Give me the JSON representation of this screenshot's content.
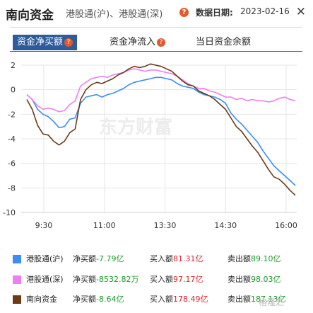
{
  "header": {
    "title": "南向资金",
    "subtitle": "港股通(沪)、港股通(深)",
    "help_glyph": "?",
    "date_label": "数据日期:",
    "date_value": "2023-02-16",
    "close_glyph": "✕"
  },
  "tabs": [
    {
      "label": "资金净买额",
      "active": true,
      "help": "?"
    },
    {
      "label": "资金净流入",
      "active": false,
      "help": "?"
    },
    {
      "label": "当日资金余额",
      "active": false,
      "help": ""
    }
  ],
  "watermark": "东方财富",
  "corner_watermark": "格隆汇",
  "colors": {
    "hgt_sh": "#3b8df2",
    "hgt_sz": "#f07ef2",
    "total": "#6b3b16",
    "accent": "#2f5b9b"
  },
  "chart_data": {
    "type": "line",
    "ylim": [
      -10,
      2
    ],
    "yticks": [
      "2",
      "0",
      "-2",
      "-4",
      "-6",
      "-8",
      "-10"
    ],
    "xticks": [
      "9:30",
      "11:00",
      "13:30",
      "14:30",
      "16:00"
    ],
    "grid": true,
    "series": [
      {
        "name": "港股通(沪)",
        "color": "#3b8df2",
        "values": [
          -0.4,
          -0.8,
          -1.6,
          -2.0,
          -2.2,
          -2.6,
          -3.1,
          -3.0,
          -2.4,
          -2.3,
          -1.1,
          -0.6,
          -0.5,
          -0.4,
          -0.6,
          -0.4,
          -0.3,
          -0.1,
          0.1,
          0.4,
          0.6,
          0.7,
          0.8,
          0.9,
          1.0,
          1.0,
          0.9,
          0.8,
          0.5,
          0.3,
          0.2,
          0.1,
          -0.2,
          -0.4,
          -0.5,
          -0.6,
          -0.8,
          -1.1,
          -1.9,
          -2.4,
          -2.8,
          -3.3,
          -3.8,
          -4.3,
          -5.0,
          -5.6,
          -6.2,
          -6.6,
          -7.0,
          -7.4,
          -7.8
        ]
      },
      {
        "name": "港股通(深)",
        "color": "#f07ef2",
        "values": [
          -0.4,
          -0.8,
          -1.3,
          -1.6,
          -1.5,
          -1.6,
          -1.8,
          -1.7,
          -1.2,
          -0.9,
          0.3,
          0.6,
          0.9,
          1.0,
          1.1,
          1.0,
          1.2,
          1.3,
          1.4,
          1.6,
          1.7,
          1.6,
          1.5,
          1.6,
          1.6,
          1.5,
          1.4,
          1.3,
          1.1,
          0.8,
          0.5,
          0.3,
          0.1,
          0.1,
          -0.1,
          -0.2,
          -0.4,
          -0.6,
          -0.6,
          -0.8,
          -0.7,
          -0.9,
          -0.8,
          -0.9,
          -0.9,
          -1.0,
          -0.9,
          -0.7,
          -0.6,
          -0.8,
          -0.9
        ]
      },
      {
        "name": "南向资金",
        "color": "#6b3b16",
        "values": [
          -0.8,
          -1.6,
          -2.9,
          -3.6,
          -3.7,
          -4.2,
          -4.5,
          -4.2,
          -3.5,
          -3.2,
          -0.8,
          0.0,
          0.4,
          0.6,
          0.5,
          0.7,
          0.9,
          1.2,
          1.4,
          1.7,
          1.9,
          1.8,
          1.9,
          2.1,
          2.0,
          1.9,
          1.7,
          1.5,
          1.1,
          0.7,
          0.4,
          0.3,
          -0.1,
          -0.3,
          -0.5,
          -0.8,
          -1.2,
          -1.6,
          -2.3,
          -3.0,
          -3.4,
          -4.0,
          -4.6,
          -5.1,
          -5.8,
          -6.5,
          -7.1,
          -7.3,
          -7.7,
          -8.2,
          -8.6
        ]
      }
    ]
  },
  "legend": [
    {
      "name": "港股通(沪)",
      "net_label": "净买额",
      "net_value": "-7.79亿",
      "buy_label": "买入额",
      "buy_value": "81.31亿",
      "sell_label": "卖出额",
      "sell_value": "89.10亿"
    },
    {
      "name": "港股通(深)",
      "net_label": "净买额",
      "net_value": "-8532.82万",
      "buy_label": "买入额",
      "buy_value": "97.17亿",
      "sell_label": "卖出额",
      "sell_value": "98.03亿"
    },
    {
      "name": "南向资金",
      "net_label": "净买额",
      "net_value": "-8.64亿",
      "buy_label": "买入额",
      "buy_value": "178.49亿",
      "sell_label": "卖出额",
      "sell_value": "187.13亿"
    }
  ]
}
